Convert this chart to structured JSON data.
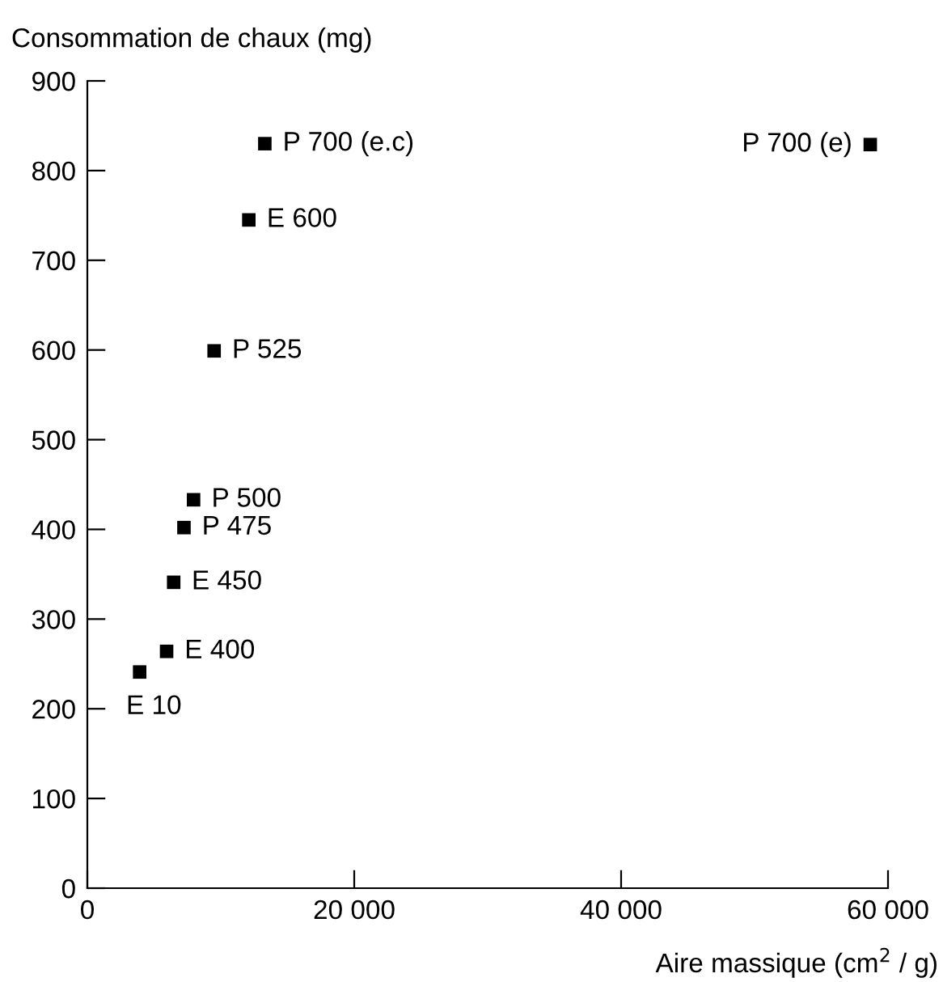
{
  "chart_data": {
    "type": "scatter",
    "xlabel": "Aire massique (cm$^{2}$ / g)",
    "ylabel": "Consommation de chaux (mg)",
    "x": [
      13300,
      12100,
      9500,
      7960,
      7240,
      6470,
      5940,
      3920,
      58670
    ],
    "series": [
      {
        "color": "#000000",
        "values": [
          830,
          745,
          599,
          433,
          402,
          341,
          264,
          241,
          829
        ]
      }
    ],
    "marker": "square",
    "xlim": [
      0,
      60000
    ],
    "ylim": [
      0,
      900
    ],
    "xticks": [
      0,
      {
        "value": 20000,
        "label": "20 000"
      },
      {
        "value": 40000,
        "label": "40 000"
      },
      {
        "value": 60000,
        "label": "60 000"
      }
    ],
    "yticks": [
      0,
      100,
      200,
      300,
      400,
      500,
      600,
      700,
      800,
      900
    ],
    "annotations": [
      {
        "text": "P 700 (e.c)",
        "x": 13300,
        "y": 830
      },
      {
        "text": "E 600",
        "x": 12100,
        "y": 745
      },
      {
        "text": "P 525",
        "x": 9500,
        "y": 599
      },
      {
        "text": "P 500",
        "x": 7960,
        "y": 433
      },
      {
        "text": "P 475",
        "x": 7240,
        "y": 402
      },
      {
        "text": "E 450",
        "x": 6470,
        "y": 341
      },
      {
        "text": "E 400",
        "x": 5940,
        "y": 264
      },
      {
        "text": "E 10",
        "x": 3920,
        "y": 241
      },
      {
        "text": "P 700 (e)",
        "x": 58670,
        "y": 829
      }
    ]
  }
}
